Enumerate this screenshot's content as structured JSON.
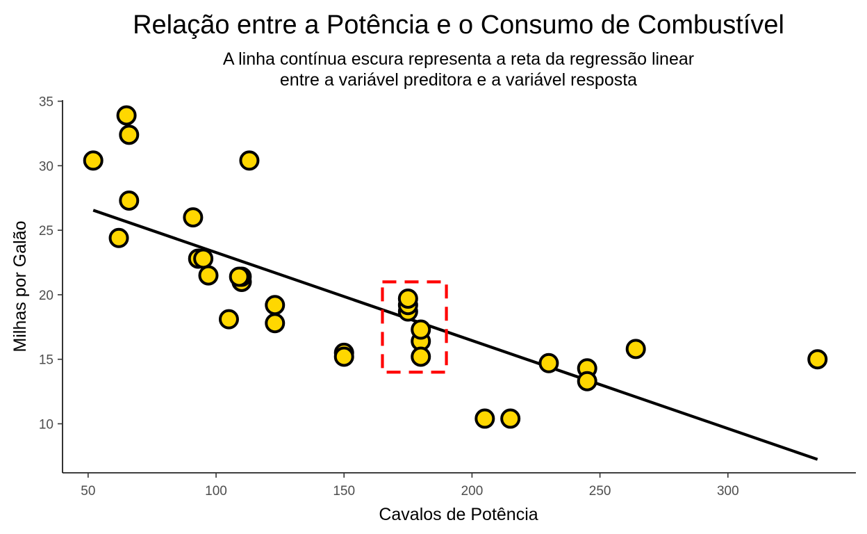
{
  "chart_data": {
    "type": "scatter",
    "title": "Relação entre a Potência e o Consumo de Combustível",
    "subtitle_lines": [
      "A linha contínua escura representa a reta da regressão linear",
      "entre a variável preditora e a variável resposta"
    ],
    "xlabel": "Cavalos de Potência",
    "ylabel": "Milhas por Galão",
    "xlim": [
      40,
      350
    ],
    "ylim": [
      6.2,
      35.3
    ],
    "xticks": [
      50,
      100,
      150,
      200,
      250,
      300
    ],
    "yticks": [
      10,
      15,
      20,
      25,
      30,
      35
    ],
    "grid": false,
    "legend": "none",
    "colors": {
      "point_fill": "#FFD700",
      "point_stroke": "#000000",
      "line": "#000000",
      "highlight": "#FF0000"
    },
    "points": [
      {
        "x": 110,
        "y": 21.0
      },
      {
        "x": 110,
        "y": 21.0
      },
      {
        "x": 93,
        "y": 22.8
      },
      {
        "x": 110,
        "y": 21.4
      },
      {
        "x": 175,
        "y": 18.7
      },
      {
        "x": 105,
        "y": 18.1
      },
      {
        "x": 245,
        "y": 14.3
      },
      {
        "x": 62,
        "y": 24.4
      },
      {
        "x": 95,
        "y": 22.8
      },
      {
        "x": 123,
        "y": 19.2
      },
      {
        "x": 123,
        "y": 17.8
      },
      {
        "x": 180,
        "y": 16.4
      },
      {
        "x": 180,
        "y": 17.3
      },
      {
        "x": 180,
        "y": 15.2
      },
      {
        "x": 205,
        "y": 10.4
      },
      {
        "x": 215,
        "y": 10.4
      },
      {
        "x": 230,
        "y": 14.7
      },
      {
        "x": 66,
        "y": 32.4
      },
      {
        "x": 52,
        "y": 30.4
      },
      {
        "x": 65,
        "y": 33.9
      },
      {
        "x": 97,
        "y": 21.5
      },
      {
        "x": 150,
        "y": 15.5
      },
      {
        "x": 150,
        "y": 15.2
      },
      {
        "x": 245,
        "y": 13.3
      },
      {
        "x": 175,
        "y": 19.2
      },
      {
        "x": 66,
        "y": 27.3
      },
      {
        "x": 91,
        "y": 26.0
      },
      {
        "x": 113,
        "y": 30.4
      },
      {
        "x": 264,
        "y": 15.8
      },
      {
        "x": 175,
        "y": 19.7
      },
      {
        "x": 335,
        "y": 15.0
      },
      {
        "x": 109,
        "y": 21.4
      }
    ],
    "regression_line": {
      "x": [
        52,
        335
      ],
      "y": [
        26.55,
        7.24
      ]
    },
    "highlight_box": {
      "x": [
        165,
        190
      ],
      "y": [
        14,
        21
      ]
    }
  }
}
